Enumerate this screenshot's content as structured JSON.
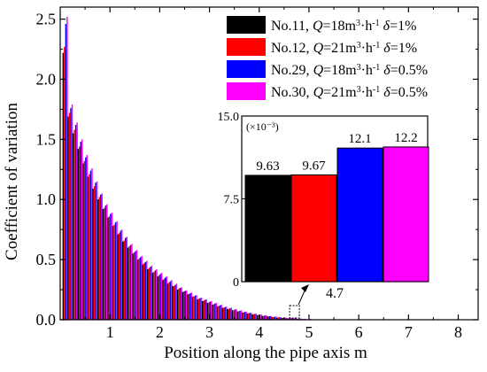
{
  "chart_data": [
    {
      "type": "bar",
      "title": "",
      "xlabel": "Position along the pipe axis m",
      "ylabel": "Coefficient of variation",
      "xlim": [
        0,
        8.4
      ],
      "ylim": [
        0,
        2.6
      ],
      "x_ticks": [
        "1",
        "2",
        "3",
        "4",
        "5",
        "6",
        "7",
        "8"
      ],
      "y_ticks": [
        "0.0",
        "0.5",
        "1.0",
        "1.5",
        "2.0",
        "2.5"
      ],
      "grid": false,
      "legend_position": "top-right",
      "x": [
        0.1,
        0.2,
        0.3,
        0.4,
        0.5,
        0.6,
        0.7,
        0.8,
        0.9,
        1.0,
        1.1,
        1.2,
        1.3,
        1.4,
        1.5,
        1.6,
        1.7,
        1.8,
        1.9,
        2.0,
        2.1,
        2.2,
        2.3,
        2.4,
        2.5,
        2.6,
        2.7,
        2.8,
        2.9,
        3.0,
        3.1,
        3.2,
        3.3,
        3.4,
        3.5,
        3.6,
        3.7,
        3.8,
        3.9,
        4.0,
        4.1,
        4.2,
        4.3,
        4.4,
        4.5,
        4.6,
        4.7,
        4.8,
        4.9,
        5.0
      ],
      "series": [
        {
          "name": "No.11",
          "legend_parts": [
            "No.11, ",
            "Q",
            "=18m",
            "3",
            "·h",
            "-1",
            " ",
            "δ",
            "=1%"
          ],
          "color": "#000000",
          "values": [
            2.22,
            1.69,
            1.55,
            1.42,
            1.3,
            1.19,
            1.09,
            1.0,
            0.92,
            0.85,
            0.78,
            0.71,
            0.65,
            0.6,
            0.55,
            0.5,
            0.46,
            0.42,
            0.39,
            0.36,
            0.33,
            0.3,
            0.28,
            0.25,
            0.23,
            0.21,
            0.19,
            0.17,
            0.155,
            0.14,
            0.125,
            0.11,
            0.1,
            0.09,
            0.08,
            0.07,
            0.06,
            0.052,
            0.045,
            0.038,
            0.032,
            0.027,
            0.022,
            0.018,
            0.015,
            0.012,
            0.01,
            0.008,
            0.006,
            0.004
          ]
        },
        {
          "name": "No.12",
          "legend_parts": [
            "No.12, ",
            "Q",
            "=21m",
            "3",
            "·h",
            "-1",
            " ",
            "δ",
            "=1%"
          ],
          "color": "#ff0000",
          "values": [
            2.27,
            1.72,
            1.58,
            1.44,
            1.32,
            1.21,
            1.11,
            1.02,
            0.93,
            0.86,
            0.79,
            0.72,
            0.66,
            0.61,
            0.56,
            0.51,
            0.47,
            0.43,
            0.4,
            0.37,
            0.34,
            0.31,
            0.28,
            0.26,
            0.235,
            0.215,
            0.195,
            0.175,
            0.16,
            0.145,
            0.13,
            0.115,
            0.1,
            0.09,
            0.08,
            0.07,
            0.062,
            0.054,
            0.046,
            0.039,
            0.033,
            0.028,
            0.023,
            0.019,
            0.015,
            0.012,
            0.01,
            0.008,
            0.006,
            0.004
          ]
        },
        {
          "name": "No.29",
          "legend_parts": [
            "No.29, ",
            "Q",
            "=18m",
            "3",
            "·h",
            "-1",
            " ",
            "δ",
            "=0.5%"
          ],
          "color": "#0000ff",
          "values": [
            2.46,
            1.76,
            1.62,
            1.48,
            1.35,
            1.24,
            1.14,
            1.04,
            0.95,
            0.88,
            0.81,
            0.74,
            0.68,
            0.62,
            0.57,
            0.52,
            0.48,
            0.44,
            0.41,
            0.38,
            0.35,
            0.32,
            0.29,
            0.265,
            0.24,
            0.22,
            0.2,
            0.18,
            0.165,
            0.15,
            0.135,
            0.12,
            0.105,
            0.095,
            0.085,
            0.075,
            0.065,
            0.056,
            0.048,
            0.041,
            0.035,
            0.03,
            0.025,
            0.021,
            0.017,
            0.014,
            0.0121,
            0.01,
            0.008,
            0.006
          ]
        },
        {
          "name": "No.30",
          "legend_parts": [
            "No.30, ",
            "Q",
            "=21m",
            "3",
            "·h",
            "-1",
            " ",
            "δ",
            "=0.5%"
          ],
          "color": "#ff00ff",
          "values": [
            2.52,
            1.79,
            1.64,
            1.5,
            1.37,
            1.26,
            1.15,
            1.05,
            0.96,
            0.89,
            0.82,
            0.75,
            0.69,
            0.63,
            0.58,
            0.53,
            0.49,
            0.45,
            0.42,
            0.39,
            0.36,
            0.33,
            0.3,
            0.27,
            0.245,
            0.225,
            0.205,
            0.185,
            0.17,
            0.155,
            0.14,
            0.125,
            0.11,
            0.1,
            0.088,
            0.078,
            0.068,
            0.058,
            0.05,
            0.043,
            0.036,
            0.031,
            0.026,
            0.021,
            0.017,
            0.014,
            0.0122,
            0.01,
            0.008,
            0.006
          ]
        }
      ]
    },
    {
      "type": "bar",
      "title": "",
      "inset": true,
      "xlabel": "4.7",
      "ylabel": "",
      "scale_label": "(×10⁻³)",
      "ylim": [
        0,
        15.0
      ],
      "y_ticks": [
        "0",
        "7.5",
        "15.0"
      ],
      "y_tick_values": [
        0,
        7.5,
        15.0
      ],
      "categories": [
        "No.11",
        "No.12",
        "No.29",
        "No.30"
      ],
      "values": [
        9.63,
        9.67,
        12.1,
        12.2
      ],
      "data_labels": [
        "9.63",
        "9.67",
        "12.1",
        "12.2"
      ],
      "colors": [
        "#000000",
        "#ff0000",
        "#0000ff",
        "#ff00ff"
      ]
    }
  ]
}
